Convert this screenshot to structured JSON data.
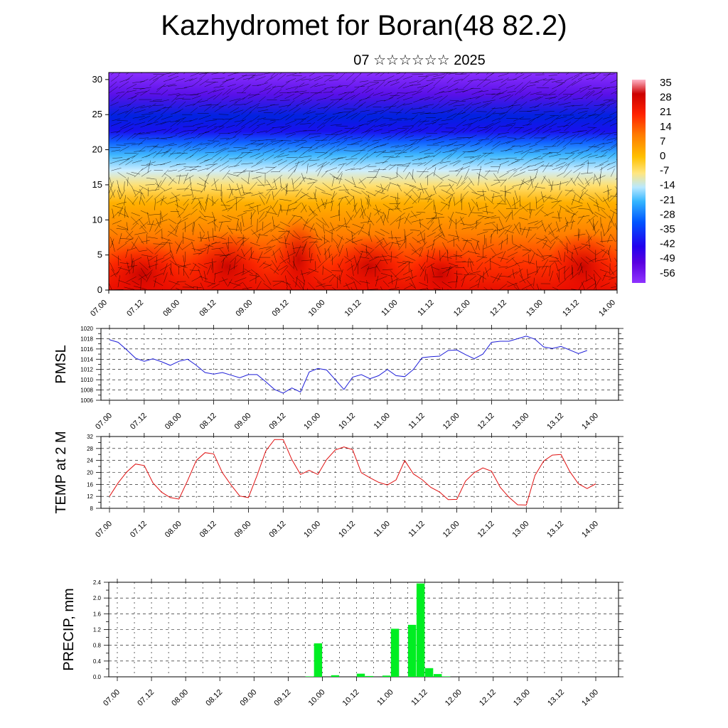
{
  "header": {
    "title": "Kazhydromet for Boran(48 82.2)",
    "subtitle": "07 ☆☆☆☆☆☆ 2025"
  },
  "colors": {
    "pmsl_line": "#1f1fd8",
    "temp_line": "#e01010",
    "precip_bar": "#00ee22",
    "colormap": [
      "#ffb3c7",
      "#cc0000",
      "#ff2200",
      "#ff7a00",
      "#ffc000",
      "#ffe680",
      "#b8e8ff",
      "#33b5ff",
      "#0055ff",
      "#2200ee",
      "#5a00e0",
      "#8f33ff"
    ]
  },
  "chart_data": [
    {
      "id": "section",
      "type": "heatmap",
      "title": "",
      "xlabel": "",
      "ylabel": "",
      "xtick_labels": [
        "07.00",
        "07.12",
        "08.00",
        "08.12",
        "09.00",
        "09.12",
        "10.00",
        "10.12",
        "11.00",
        "11.12",
        "12.00",
        "12.12",
        "13.00",
        "13.12",
        "14.00"
      ],
      "yticks": [
        0,
        5,
        10,
        15,
        20,
        25,
        30
      ],
      "ylim": [
        0,
        31
      ],
      "colorbar_labels": [
        "35",
        "28",
        "21",
        "14",
        "7",
        "0",
        "-7",
        "-14",
        "-21",
        "-28",
        "-35",
        "-42",
        "-49",
        "-56"
      ],
      "colorbar_values": [
        35,
        28,
        21,
        14,
        7,
        0,
        -7,
        -14,
        -21,
        -28,
        -35,
        -42,
        -49,
        -56
      ]
    },
    {
      "id": "pmsl",
      "type": "line",
      "ylabel": "PMSL",
      "ylim": [
        1006,
        1020
      ],
      "yticks": [
        1006,
        1008,
        1010,
        1012,
        1014,
        1016,
        1018,
        1020
      ],
      "grid": true,
      "xtick_labels": [
        "07.00",
        "07.12",
        "08.00",
        "08.12",
        "09.00",
        "09.12",
        "10.00",
        "10.12",
        "11.00",
        "11.12",
        "12.00",
        "12.12",
        "13.00",
        "13.12",
        "14.00"
      ],
      "x_step_hours": 3,
      "values": [
        1017.8,
        1017.3,
        1015.8,
        1014.2,
        1013.6,
        1014.1,
        1013.5,
        1012.8,
        1013.6,
        1014.0,
        1012.8,
        1011.4,
        1011.1,
        1011.4,
        1010.9,
        1010.4,
        1011.0,
        1011.0,
        1009.6,
        1008.1,
        1007.4,
        1008.4,
        1007.6,
        1011.5,
        1012.2,
        1011.9,
        1010.0,
        1008.1,
        1010.5,
        1011.0,
        1010.2,
        1010.8,
        1012.0,
        1010.8,
        1010.6,
        1012.0,
        1014.3,
        1014.5,
        1014.6,
        1015.7,
        1015.8,
        1014.9,
        1014.1,
        1015.0,
        1017.3,
        1017.5,
        1017.5,
        1018.0,
        1018.5,
        1017.9,
        1016.4,
        1016.1,
        1016.5,
        1015.8,
        1015.1,
        1015.7
      ]
    },
    {
      "id": "temp",
      "type": "line",
      "ylabel": "TEMP at 2 M",
      "ylim": [
        8,
        32
      ],
      "yticks": [
        8,
        12,
        16,
        20,
        24,
        28,
        32
      ],
      "grid": true,
      "xtick_labels": [
        "07.00",
        "07.12",
        "08.00",
        "08.12",
        "09.00",
        "09.12",
        "10.00",
        "10.12",
        "11.00",
        "11.12",
        "12.00",
        "12.12",
        "13.00",
        "13.12",
        "14.00"
      ],
      "x_step_hours": 3,
      "values": [
        12.0,
        16.5,
        20.2,
        22.8,
        22.3,
        16.5,
        13.4,
        11.6,
        11.1,
        17.3,
        24.0,
        26.6,
        26.2,
        19.9,
        15.8,
        12.1,
        11.6,
        19.0,
        27.2,
        31.0,
        31.0,
        24.3,
        19.3,
        20.7,
        19.3,
        24.3,
        27.5,
        28.5,
        27.6,
        19.9,
        18.2,
        16.7,
        15.8,
        17.5,
        24.0,
        19.5,
        17.6,
        15.0,
        13.5,
        10.9,
        11.0,
        17.1,
        19.9,
        21.5,
        20.4,
        15.0,
        11.7,
        9.2,
        9.1,
        19.0,
        23.8,
        25.8,
        26.0,
        20.3,
        16.2,
        14.6,
        16.2
      ]
    },
    {
      "id": "precip",
      "type": "bar",
      "ylabel": "PRECIP, mm",
      "ylim": [
        0,
        2.4
      ],
      "yticks": [
        0.0,
        0.4,
        0.8,
        1.2,
        1.6,
        2.0,
        2.4
      ],
      "ytick_labels": [
        "0.0",
        "0.4",
        "0.8",
        "1.2",
        "1.6",
        "2.0",
        "2.4"
      ],
      "grid": true,
      "xtick_labels": [
        "07.00",
        "07.12",
        "08.00",
        "08.12",
        "09.00",
        "09.12",
        "10.00",
        "10.12",
        "11.00",
        "11.12",
        "12.00",
        "12.12",
        "13.00",
        "13.12",
        "14.00"
      ],
      "x_step_hours": 3,
      "values": [
        0,
        0,
        0,
        0,
        0,
        0,
        0,
        0,
        0,
        0,
        0,
        0,
        0,
        0,
        0,
        0,
        0,
        0,
        0,
        0,
        0,
        0,
        0.01,
        0.85,
        0,
        0.04,
        0,
        0,
        0.08,
        0.02,
        0,
        0.03,
        1.22,
        0,
        1.32,
        2.37,
        0.22,
        0.07,
        0.01,
        0,
        0,
        0,
        0,
        0,
        0,
        0,
        0,
        0,
        0,
        0,
        0,
        0,
        0,
        0,
        0,
        0
      ]
    }
  ]
}
